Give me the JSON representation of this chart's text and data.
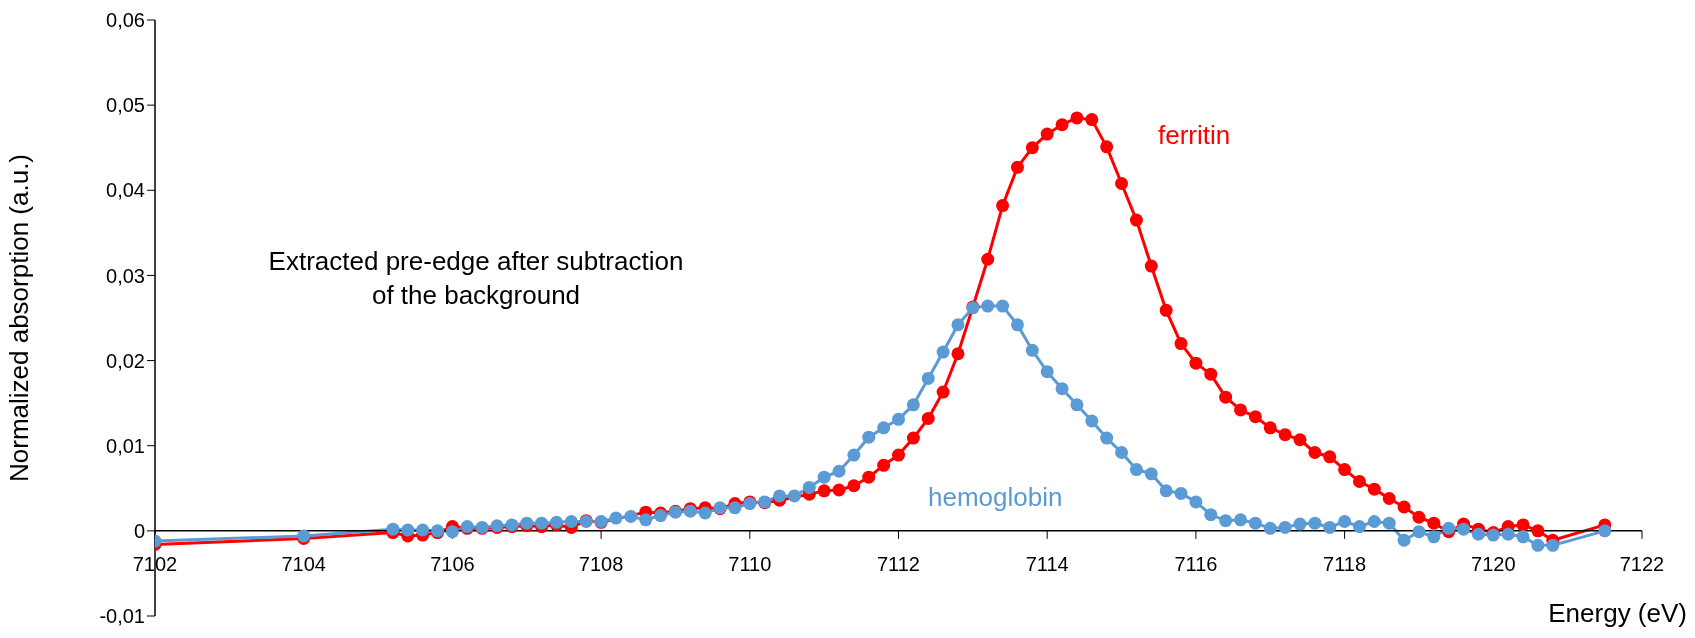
{
  "chart_data": {
    "type": "line",
    "ylabel": "Normalized absorption (a.u.)",
    "xlabel": "Energy (eV)",
    "annotations": [
      "Extracted pre-edge after subtraction of the background"
    ],
    "x": [
      7102,
      7104,
      7105.2,
      7105.4,
      7105.6,
      7105.8,
      7106,
      7106.2,
      7106.4,
      7106.6,
      7106.8,
      7107,
      7107.2,
      7107.4,
      7107.6,
      7107.8,
      7108,
      7108.2,
      7108.4,
      7108.6,
      7108.8,
      7109,
      7109.2,
      7109.4,
      7109.6,
      7109.8,
      7110,
      7110.2,
      7110.4,
      7110.6,
      7110.8,
      7111,
      7111.2,
      7111.4,
      7111.6,
      7111.8,
      7112,
      7112.2,
      7112.4,
      7112.6,
      7112.8,
      7113,
      7113.2,
      7113.4,
      7113.6,
      7113.8,
      7114,
      7114.2,
      7114.4,
      7114.6,
      7114.8,
      7115,
      7115.2,
      7115.4,
      7115.6,
      7115.8,
      7116,
      7116.2,
      7116.4,
      7116.6,
      7116.8,
      7117,
      7117.2,
      7117.4,
      7117.6,
      7117.8,
      7118,
      7118.2,
      7118.4,
      7118.6,
      7118.8,
      7119,
      7119.2,
      7119.4,
      7119.6,
      7119.8,
      7120,
      7120.2,
      7120.4,
      7120.6,
      7120.8,
      7121.5
    ],
    "series": [
      {
        "name": "ferritin",
        "color": "#ff0000",
        "values": [
          -0.0016,
          -0.0009,
          -0.0002,
          -0.0006,
          -0.0005,
          -0.0002,
          0.0005,
          0.0003,
          0.0003,
          0.0004,
          0.0005,
          0.0006,
          0.0005,
          0.0007,
          0.0004,
          0.0012,
          0.001,
          null,
          null,
          0.0022,
          0.0021,
          0.0023,
          0.0026,
          0.0027,
          0.0026,
          0.0032,
          0.0034,
          0.0033,
          0.0036,
          null,
          0.0043,
          0.0047,
          0.0048,
          0.0053,
          0.0063,
          0.0077,
          0.0089,
          0.0109,
          0.0132,
          0.0163,
          0.0208,
          0.0263,
          0.0319,
          0.0382,
          0.0427,
          0.045,
          0.0466,
          0.0477,
          0.0485,
          0.0483,
          0.0451,
          0.0408,
          0.0365,
          0.0311,
          0.0259,
          0.022,
          0.0197,
          0.0184,
          0.0157,
          0.0142,
          0.0134,
          0.0121,
          0.0113,
          0.0107,
          0.0092,
          0.0087,
          0.0072,
          0.0058,
          0.0049,
          0.0038,
          0.0028,
          0.0016,
          0.0009,
          -0.0001,
          0.0008,
          0.0002,
          -0.0002,
          0.0005,
          0.0007,
          0.0,
          -0.0011,
          0.0007
        ]
      },
      {
        "name": "hemoglobin",
        "color": "#5b9bd5",
        "values": [
          -0.0012,
          -0.0006,
          0.0002,
          0.0001,
          0.0001,
          0.0,
          -0.0001,
          0.0005,
          0.0004,
          0.0006,
          0.0007,
          0.0009,
          0.0009,
          0.001,
          0.0011,
          0.0011,
          0.0011,
          0.0015,
          0.0017,
          0.0013,
          0.0018,
          0.0022,
          0.0023,
          0.0021,
          0.0027,
          0.0027,
          0.0032,
          0.0034,
          0.0041,
          0.0041,
          0.0051,
          0.0063,
          0.007,
          0.0089,
          0.011,
          0.0121,
          0.0131,
          0.0148,
          0.0179,
          0.021,
          0.0242,
          0.0262,
          0.0264,
          0.0264,
          0.0242,
          0.0212,
          0.0187,
          0.0167,
          0.0148,
          0.0129,
          0.0109,
          0.0092,
          0.0072,
          0.0067,
          0.0047,
          0.0044,
          0.0034,
          0.0019,
          0.0012,
          0.0013,
          0.0009,
          0.0003,
          0.0004,
          0.0008,
          0.0009,
          0.0004,
          0.0011,
          0.0005,
          0.0011,
          0.0009,
          -0.0011,
          -0.0001,
          -0.0007,
          0.0003,
          0.0002,
          -0.0004,
          -0.0005,
          -0.0004,
          -0.0007,
          -0.0017,
          -0.0017,
          0.0
        ]
      }
    ],
    "xlim": [
      7102,
      7122
    ],
    "xticks": [
      7102,
      7104,
      7106,
      7108,
      7110,
      7112,
      7114,
      7116,
      7118,
      7120,
      7122
    ],
    "ylim": [
      -0.01,
      0.06
    ],
    "yticks": [
      {
        "value": -0.01,
        "label": "-0,01"
      },
      0,
      {
        "value": 0.01,
        "label": "0,01"
      },
      {
        "value": 0.02,
        "label": "0,02"
      },
      {
        "value": 0.03,
        "label": "0,03"
      },
      {
        "value": 0.04,
        "label": "0,04"
      },
      {
        "value": 0.05,
        "label": "0,05"
      },
      {
        "value": 0.06,
        "label": "0,06"
      }
    ],
    "grid": false,
    "legend": false,
    "marker": "circle",
    "line_style": "solid"
  }
}
